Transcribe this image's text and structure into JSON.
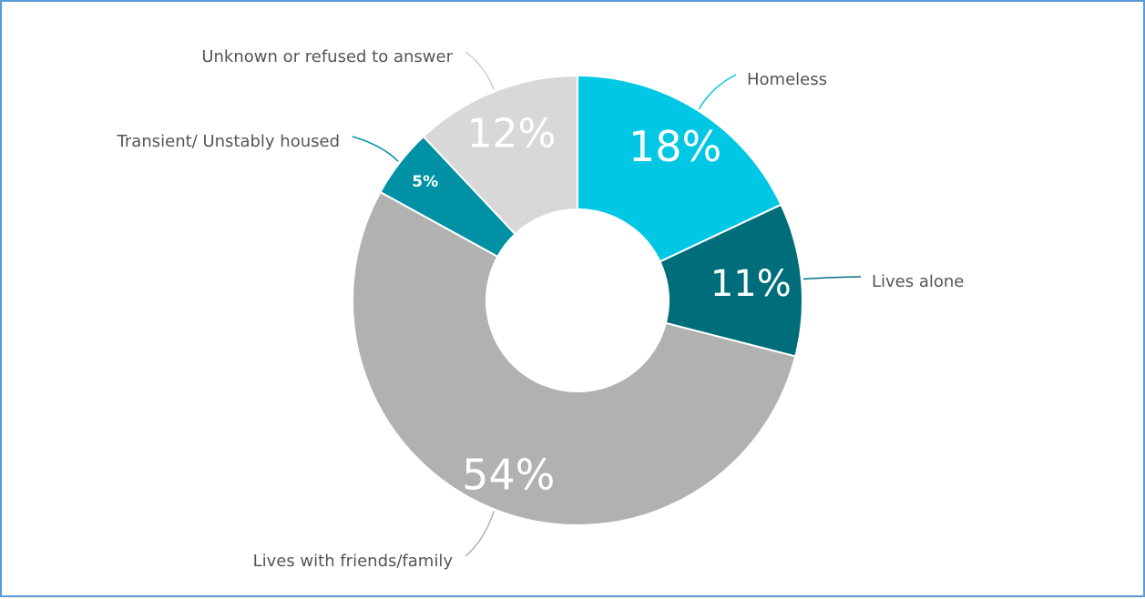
{
  "chart_data": {
    "type": "pie",
    "donut": true,
    "legend": "none",
    "slices": [
      {
        "label": "Homeless",
        "value": 18,
        "display": "18%",
        "color": "#00c8e4"
      },
      {
        "label": "Lives alone",
        "value": 11,
        "display": "11%",
        "color": "#006e7a"
      },
      {
        "label": "Lives with friends/family",
        "value": 54,
        "display": "54%",
        "color": "#b1b1b1"
      },
      {
        "label": "Transient/ Unstably housed",
        "value": 5,
        "display": "5%",
        "color": "#0092a4"
      },
      {
        "label": "Unknown or refused to answer",
        "value": 12,
        "display": "12%",
        "color": "#d8d8d8"
      }
    ]
  }
}
